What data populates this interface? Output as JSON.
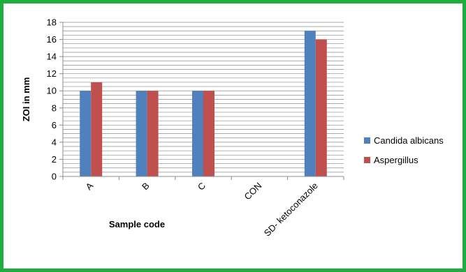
{
  "chart_data": {
    "type": "bar",
    "categories": [
      "A",
      "B",
      "C",
      "CON",
      "SD- ketoconazole"
    ],
    "series": [
      {
        "name": "Candida albicans",
        "values": [
          10,
          10,
          10,
          0,
          17
        ],
        "color": "#4f81bd"
      },
      {
        "name": "Aspergillus",
        "values": [
          11,
          10,
          10,
          0,
          16
        ],
        "color": "#c0504d"
      }
    ],
    "xlabel": "Sample code",
    "ylabel": "ZOI in mm",
    "ylim": [
      0,
      18
    ],
    "ytick_step": 2,
    "minor_grid_step": 0.5,
    "grid": true,
    "legend_position": "right",
    "frame_color": "#1fae3d"
  }
}
